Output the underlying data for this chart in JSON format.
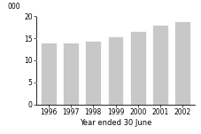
{
  "categories": [
    "1996",
    "1997",
    "1998",
    "1999",
    "2000",
    "2001",
    "2002"
  ],
  "values": [
    14.0,
    14.0,
    14.5,
    15.5,
    16.6,
    18.0,
    18.8
  ],
  "bar_color": "#c8c8c8",
  "bar_edge_color": "#ffffff",
  "bar_linewidth": 0.5,
  "ylim": [
    0,
    20
  ],
  "yticks": [
    0,
    5,
    10,
    15,
    20
  ],
  "ylabel_unit": "000",
  "xlabel": "Year ended 30 June",
  "grid_color": "#ffffff",
  "grid_linewidth": 0.8,
  "background_color": "#ffffff",
  "tick_fontsize": 5.5,
  "label_fontsize": 6.0
}
